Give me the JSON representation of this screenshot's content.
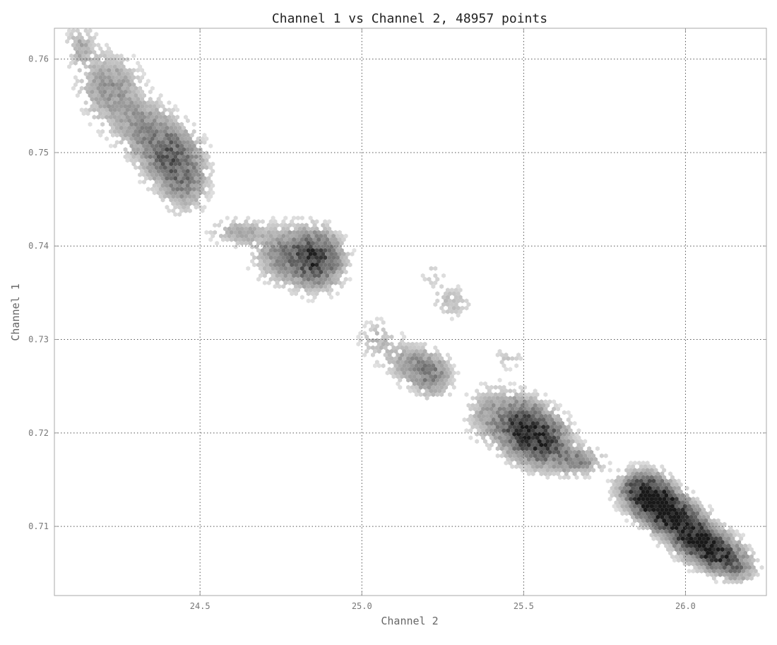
{
  "chart_data": {
    "type": "hexbin",
    "title": "Channel 1 vs Channel 2, 48957 points",
    "xlabel": "Channel 2",
    "ylabel": "Channel 1",
    "xlim": [
      24.05,
      26.25
    ],
    "ylim": [
      0.7026,
      0.7633
    ],
    "x_ticks": [
      24.5,
      25.0,
      25.5,
      26.0
    ],
    "x_tick_labels": [
      "24.5",
      "25.0",
      "25.5",
      "26.0"
    ],
    "y_ticks": [
      0.71,
      0.72,
      0.73,
      0.74,
      0.75,
      0.76
    ],
    "y_tick_labels": [
      "0.71",
      "0.72",
      "0.73",
      "0.74",
      "0.75",
      "0.76"
    ],
    "grid": true,
    "grid_style": "dotted",
    "colormap": "greys",
    "total_points": 48957,
    "clusters": [
      {
        "x": 24.13,
        "y": 0.7615,
        "sx": 0.03,
        "sy": 0.0015,
        "w": 0.5
      },
      {
        "x": 24.22,
        "y": 0.757,
        "sx": 0.06,
        "sy": 0.0025,
        "w": 0.7
      },
      {
        "x": 24.32,
        "y": 0.753,
        "sx": 0.06,
        "sy": 0.002,
        "w": 0.6
      },
      {
        "x": 24.4,
        "y": 0.75,
        "sx": 0.06,
        "sy": 0.002,
        "w": 1.0
      },
      {
        "x": 24.45,
        "y": 0.747,
        "sx": 0.05,
        "sy": 0.0022,
        "w": 0.8
      },
      {
        "x": 24.62,
        "y": 0.7415,
        "sx": 0.06,
        "sy": 0.001,
        "w": 0.5
      },
      {
        "x": 24.78,
        "y": 0.739,
        "sx": 0.07,
        "sy": 0.002,
        "w": 0.9
      },
      {
        "x": 24.87,
        "y": 0.7385,
        "sx": 0.05,
        "sy": 0.002,
        "w": 1.2
      },
      {
        "x": 25.05,
        "y": 0.73,
        "sx": 0.04,
        "sy": 0.0015,
        "w": 0.4
      },
      {
        "x": 25.15,
        "y": 0.7275,
        "sx": 0.05,
        "sy": 0.0015,
        "w": 0.6
      },
      {
        "x": 25.22,
        "y": 0.726,
        "sx": 0.04,
        "sy": 0.0015,
        "w": 0.8
      },
      {
        "x": 25.28,
        "y": 0.734,
        "sx": 0.04,
        "sy": 0.0012,
        "w": 0.4
      },
      {
        "x": 25.22,
        "y": 0.737,
        "sx": 0.03,
        "sy": 0.0012,
        "w": 0.25
      },
      {
        "x": 25.45,
        "y": 0.728,
        "sx": 0.04,
        "sy": 0.0008,
        "w": 0.3
      },
      {
        "x": 25.4,
        "y": 0.722,
        "sx": 0.05,
        "sy": 0.002,
        "w": 0.6
      },
      {
        "x": 25.5,
        "y": 0.7205,
        "sx": 0.05,
        "sy": 0.002,
        "w": 1.5
      },
      {
        "x": 25.57,
        "y": 0.719,
        "sx": 0.05,
        "sy": 0.0018,
        "w": 1.2
      },
      {
        "x": 25.67,
        "y": 0.717,
        "sx": 0.05,
        "sy": 0.001,
        "w": 0.8
      },
      {
        "x": 25.87,
        "y": 0.714,
        "sx": 0.05,
        "sy": 0.0013,
        "w": 1.6
      },
      {
        "x": 25.92,
        "y": 0.7122,
        "sx": 0.05,
        "sy": 0.0012,
        "w": 1.9
      },
      {
        "x": 25.98,
        "y": 0.7105,
        "sx": 0.05,
        "sy": 0.0012,
        "w": 1.7
      },
      {
        "x": 26.04,
        "y": 0.7085,
        "sx": 0.05,
        "sy": 0.0012,
        "w": 1.6
      },
      {
        "x": 26.1,
        "y": 0.707,
        "sx": 0.05,
        "sy": 0.0012,
        "w": 1.4
      },
      {
        "x": 26.16,
        "y": 0.7055,
        "sx": 0.04,
        "sy": 0.001,
        "w": 0.8
      }
    ]
  }
}
